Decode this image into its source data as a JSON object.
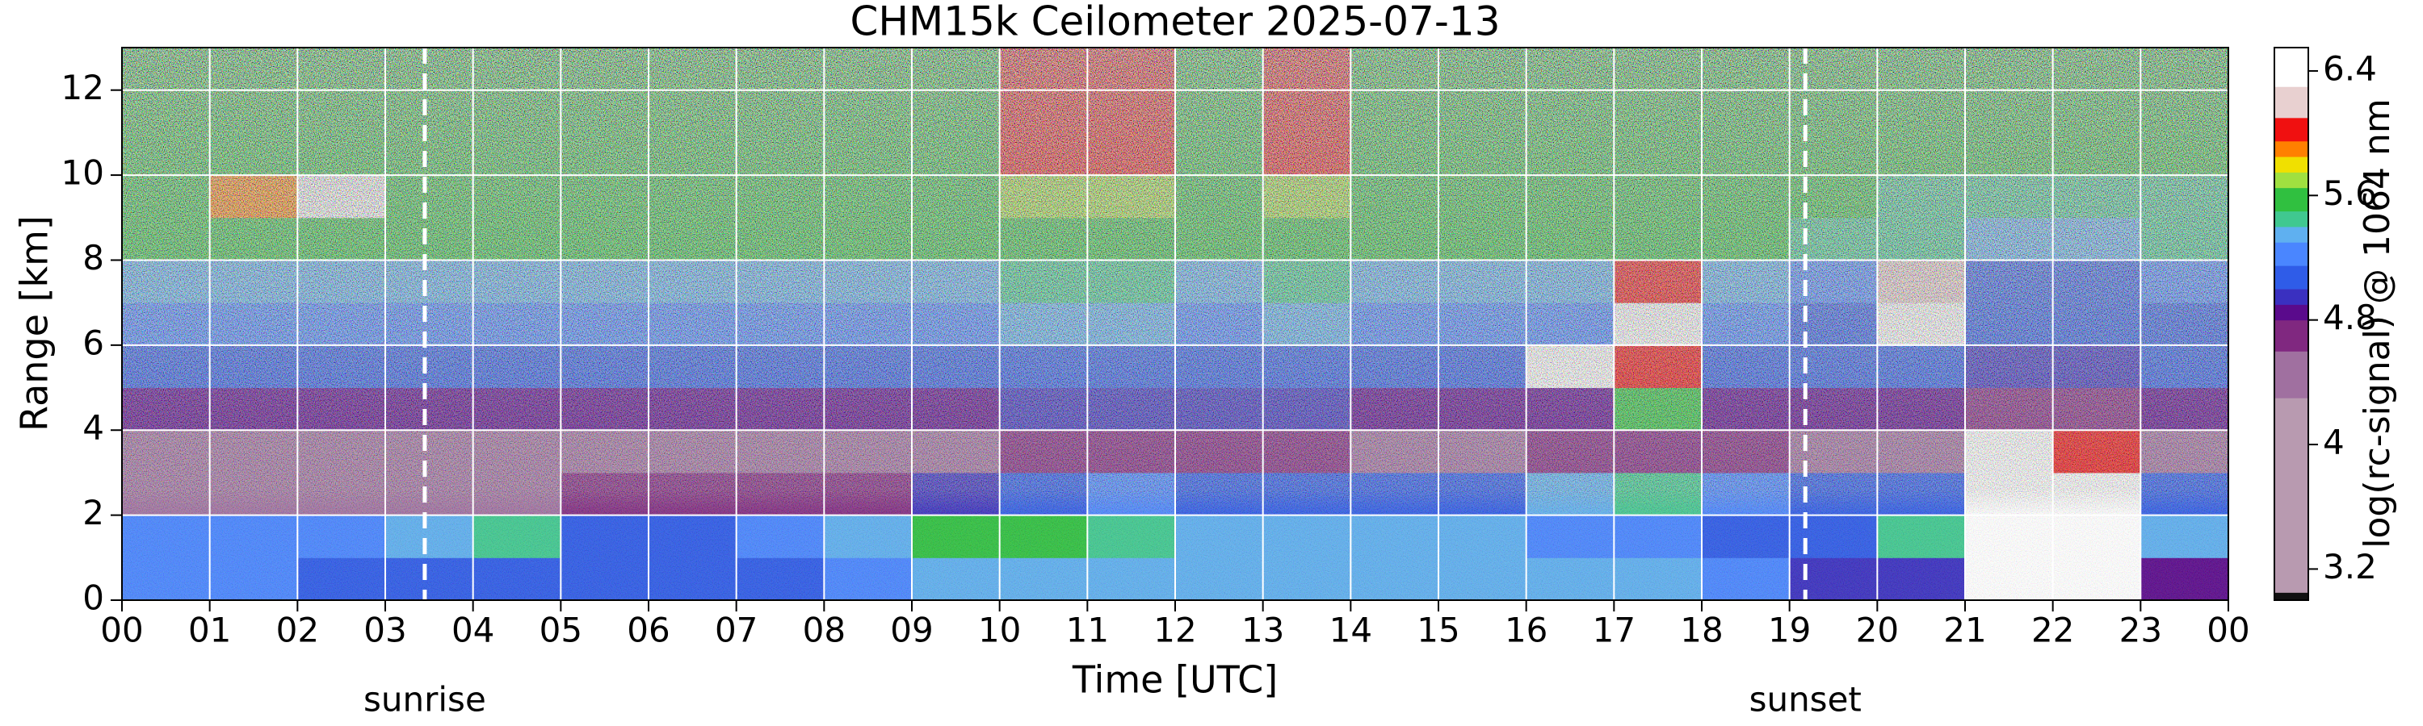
{
  "chart_data": {
    "type": "heatmap",
    "title": "CHM15k Ceilometer 2025-07-13",
    "xlabel": "Time [UTC]",
    "ylabel": "Range [km]",
    "colorbar_label": "log(rc-signal) @ 1064 nm",
    "xbins": [
      0,
      1,
      2,
      3,
      4,
      5,
      6,
      7,
      8,
      9,
      10,
      11,
      12,
      13,
      14,
      15,
      16,
      17,
      18,
      19,
      20,
      21,
      22,
      23,
      24
    ],
    "ybins": [
      0,
      1,
      2,
      3,
      4,
      5,
      6,
      7,
      8,
      9,
      10,
      11,
      12,
      13
    ],
    "z": [
      [
        5.2,
        5.2,
        5.1,
        5.1,
        5.0,
        5.0,
        5.1,
        5.1,
        5.2,
        5.3,
        5.3,
        5.3,
        5.3,
        5.3,
        5.3,
        5.3,
        5.3,
        5.3,
        5.2,
        4.9,
        4.9,
        6.5,
        6.5,
        4.8
      ],
      [
        5.2,
        5.2,
        5.2,
        5.3,
        5.4,
        5.1,
        5.1,
        5.2,
        5.3,
        5.5,
        5.5,
        5.4,
        5.3,
        5.3,
        5.3,
        5.3,
        5.2,
        5.2,
        5.1,
        5.0,
        5.4,
        6.5,
        6.5,
        5.3
      ],
      [
        4.5,
        4.5,
        4.5,
        4.5,
        4.5,
        4.6,
        4.6,
        4.6,
        4.7,
        4.9,
        5.1,
        5.2,
        5.1,
        5.1,
        5.0,
        5.0,
        5.3,
        5.4,
        5.2,
        5.1,
        5.0,
        6.5,
        6.5,
        5.1
      ],
      [
        4.3,
        4.3,
        4.3,
        4.3,
        4.3,
        4.3,
        4.3,
        4.3,
        4.4,
        4.5,
        4.6,
        4.7,
        4.6,
        4.6,
        4.5,
        4.5,
        4.6,
        4.6,
        4.6,
        4.5,
        4.4,
        6.5,
        6.0,
        4.5
      ],
      [
        4.8,
        4.8,
        4.8,
        4.8,
        4.8,
        4.8,
        4.8,
        4.8,
        4.8,
        4.8,
        4.9,
        4.9,
        4.9,
        4.9,
        4.8,
        4.8,
        4.8,
        5.6,
        4.8,
        4.8,
        4.8,
        4.7,
        4.7,
        4.8
      ],
      [
        5.0,
        5.0,
        5.0,
        5.0,
        5.0,
        5.0,
        5.0,
        5.0,
        5.0,
        5.0,
        5.1,
        5.1,
        5.0,
        5.1,
        5.0,
        5.0,
        6.3,
        6.0,
        5.0,
        5.0,
        5.0,
        4.9,
        4.9,
        5.0
      ],
      [
        5.2,
        5.2,
        5.2,
        5.2,
        5.2,
        5.2,
        5.2,
        5.2,
        5.2,
        5.2,
        5.3,
        5.3,
        5.2,
        5.3,
        5.2,
        5.2,
        5.2,
        6.3,
        5.2,
        5.1,
        6.5,
        5.0,
        5.0,
        5.1
      ],
      [
        5.3,
        5.3,
        5.3,
        5.3,
        5.3,
        5.3,
        5.3,
        5.3,
        5.3,
        5.3,
        5.4,
        5.4,
        5.3,
        5.4,
        5.3,
        5.3,
        5.3,
        6.0,
        5.3,
        5.2,
        6.2,
        5.1,
        5.1,
        5.2
      ],
      [
        5.5,
        5.5,
        5.5,
        5.5,
        5.5,
        5.5,
        5.5,
        5.5,
        5.5,
        5.5,
        5.6,
        5.6,
        5.5,
        5.6,
        5.5,
        5.5,
        5.5,
        5.5,
        5.5,
        5.4,
        5.4,
        5.3,
        5.3,
        5.4
      ],
      [
        5.5,
        5.9,
        6.4,
        5.5,
        5.5,
        5.5,
        5.5,
        5.5,
        5.5,
        5.5,
        5.7,
        5.7,
        5.5,
        5.7,
        5.5,
        5.5,
        5.5,
        5.5,
        5.5,
        5.5,
        5.4,
        5.4,
        5.4,
        5.4
      ],
      [
        5.6,
        5.6,
        5.6,
        5.6,
        5.6,
        5.6,
        5.6,
        5.6,
        5.6,
        5.6,
        6.0,
        6.0,
        5.6,
        6.0,
        5.6,
        5.6,
        5.6,
        5.6,
        5.6,
        5.6,
        5.5,
        5.5,
        5.5,
        5.5
      ],
      [
        5.6,
        5.6,
        5.6,
        5.6,
        5.6,
        5.6,
        5.6,
        5.6,
        5.6,
        5.6,
        6.0,
        6.0,
        5.6,
        6.0,
        5.6,
        5.6,
        5.6,
        5.6,
        5.6,
        5.6,
        5.5,
        5.5,
        5.5,
        5.5
      ],
      [
        5.6,
        5.6,
        5.6,
        5.6,
        5.6,
        5.6,
        5.6,
        5.6,
        5.6,
        5.6,
        6.0,
        6.0,
        5.6,
        6.0,
        5.6,
        5.6,
        5.6,
        5.6,
        5.6,
        5.6,
        5.5,
        5.5,
        5.5,
        5.5
      ]
    ],
    "xlim": [
      0,
      24
    ],
    "xticks": [
      {
        "value": 0,
        "label": "00"
      },
      {
        "value": 1,
        "label": "01"
      },
      {
        "value": 2,
        "label": "02"
      },
      {
        "value": 3,
        "label": "03"
      },
      {
        "value": 4,
        "label": "04"
      },
      {
        "value": 5,
        "label": "05"
      },
      {
        "value": 6,
        "label": "06"
      },
      {
        "value": 7,
        "label": "07"
      },
      {
        "value": 8,
        "label": "08"
      },
      {
        "value": 9,
        "label": "09"
      },
      10,
      11,
      12,
      13,
      14,
      15,
      16,
      17,
      18,
      19,
      20,
      21,
      22,
      23,
      {
        "value": 24,
        "label": "00"
      }
    ],
    "ylim": [
      0,
      13
    ],
    "yticks": [
      0,
      2,
      4,
      6,
      8,
      10,
      12
    ],
    "clim": [
      3.0,
      6.55
    ],
    "cticks": [
      3.2,
      4,
      4.8,
      5.6,
      6.4
    ],
    "colorscale": [
      [
        3.0,
        "#111111"
      ],
      [
        3.05,
        "#b89ab0"
      ],
      [
        4.3,
        "#a070a0"
      ],
      [
        4.6,
        "#802880"
      ],
      [
        4.8,
        "#5a0a8c"
      ],
      [
        4.9,
        "#3a30c0"
      ],
      [
        5.0,
        "#2f5ce8"
      ],
      [
        5.15,
        "#4a86ff"
      ],
      [
        5.3,
        "#5fb0f0"
      ],
      [
        5.4,
        "#40c890"
      ],
      [
        5.5,
        "#30c040"
      ],
      [
        5.65,
        "#a0e040"
      ],
      [
        5.75,
        "#f0e000"
      ],
      [
        5.85,
        "#ff8000"
      ],
      [
        5.95,
        "#f01010"
      ],
      [
        6.1,
        "#e8d0d0"
      ],
      [
        6.3,
        "#ffffff"
      ]
    ],
    "grid": true,
    "grid_color": "#ffffff",
    "annotations": [
      {
        "text": "sunrise",
        "x": 3.45
      },
      {
        "text": "sunset",
        "x": 19.18
      }
    ]
  }
}
